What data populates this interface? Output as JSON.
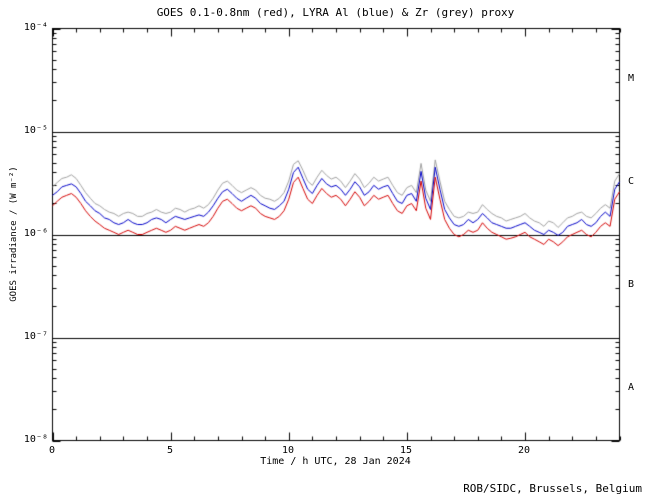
{
  "chart_data": {
    "type": "line",
    "title": "GOES 0.1-0.8nm (red), LYRA Al (blue) & Zr (grey) proxy",
    "xlabel": "Time / h UTC, 28 Jan 2024",
    "ylabel": "GOES irradiance / (W m⁻²)",
    "x_range": [
      0,
      24
    ],
    "y_scale": "log",
    "y_range": [
      1e-08,
      0.0001
    ],
    "xticks": [
      0,
      5,
      10,
      15,
      20
    ],
    "xtick_labels": [
      "0",
      "5",
      "10",
      "15",
      "20"
    ],
    "ytick_values": [
      1e-08,
      1e-07,
      1e-06,
      1e-05,
      0.0001
    ],
    "ytick_labels": [
      "10⁻⁸",
      "10⁻⁷",
      "10⁻⁶",
      "10⁻⁵",
      "10⁻⁴"
    ],
    "class_lines": [
      1e-07,
      1e-06,
      1e-05
    ],
    "class_labels": [
      "M",
      "C",
      "B",
      "A"
    ],
    "grid": false,
    "legend": "in title",
    "x_step_h": 0.2,
    "values_unit": "1e-6 W m^-2",
    "series": [
      {
        "name": "GOES 0.1-0.8nm",
        "color": "#d40000",
        "values": [
          1.9,
          2.1,
          2.3,
          2.4,
          2.5,
          2.3,
          2.0,
          1.7,
          1.5,
          1.35,
          1.25,
          1.15,
          1.1,
          1.05,
          1.0,
          1.05,
          1.1,
          1.05,
          1.0,
          1.0,
          1.05,
          1.1,
          1.15,
          1.1,
          1.05,
          1.1,
          1.2,
          1.15,
          1.1,
          1.15,
          1.2,
          1.25,
          1.2,
          1.3,
          1.5,
          1.8,
          2.1,
          2.2,
          2.0,
          1.8,
          1.7,
          1.8,
          1.9,
          1.8,
          1.6,
          1.5,
          1.45,
          1.4,
          1.5,
          1.7,
          2.2,
          3.2,
          3.6,
          2.8,
          2.2,
          2.0,
          2.4,
          2.8,
          2.5,
          2.3,
          2.4,
          2.2,
          1.9,
          2.2,
          2.6,
          2.3,
          1.9,
          2.1,
          2.4,
          2.2,
          2.3,
          2.4,
          2.0,
          1.7,
          1.6,
          1.9,
          2.0,
          1.7,
          3.3,
          1.8,
          1.4,
          3.6,
          2.2,
          1.4,
          1.15,
          1.0,
          0.95,
          1.0,
          1.1,
          1.05,
          1.1,
          1.3,
          1.15,
          1.05,
          1.0,
          0.95,
          0.9,
          0.92,
          0.95,
          1.0,
          1.05,
          0.95,
          0.9,
          0.85,
          0.8,
          0.9,
          0.85,
          0.78,
          0.85,
          0.95,
          1.0,
          1.05,
          1.1,
          1.0,
          0.95,
          1.05,
          1.2,
          1.3,
          1.2,
          2.2,
          2.6
        ]
      },
      {
        "name": "LYRA Al proxy",
        "color": "#0000c8",
        "values": [
          2.4,
          2.6,
          2.9,
          3.0,
          3.1,
          2.9,
          2.5,
          2.1,
          1.9,
          1.7,
          1.6,
          1.45,
          1.4,
          1.3,
          1.25,
          1.3,
          1.4,
          1.3,
          1.25,
          1.25,
          1.3,
          1.4,
          1.45,
          1.4,
          1.3,
          1.4,
          1.5,
          1.45,
          1.4,
          1.45,
          1.5,
          1.55,
          1.5,
          1.65,
          1.9,
          2.25,
          2.6,
          2.75,
          2.5,
          2.25,
          2.1,
          2.25,
          2.4,
          2.25,
          2.0,
          1.9,
          1.8,
          1.75,
          1.9,
          2.1,
          2.75,
          4.0,
          4.5,
          3.5,
          2.75,
          2.5,
          3.0,
          3.5,
          3.1,
          2.9,
          3.0,
          2.75,
          2.4,
          2.75,
          3.25,
          2.9,
          2.4,
          2.6,
          3.0,
          2.75,
          2.9,
          3.0,
          2.5,
          2.1,
          2.0,
          2.4,
          2.5,
          2.1,
          4.1,
          2.25,
          1.75,
          4.5,
          2.75,
          1.75,
          1.45,
          1.25,
          1.2,
          1.25,
          1.4,
          1.3,
          1.4,
          1.6,
          1.45,
          1.3,
          1.25,
          1.2,
          1.15,
          1.15,
          1.2,
          1.25,
          1.3,
          1.2,
          1.1,
          1.05,
          1.0,
          1.1,
          1.05,
          0.98,
          1.05,
          1.2,
          1.25,
          1.3,
          1.4,
          1.25,
          1.2,
          1.3,
          1.5,
          1.65,
          1.5,
          2.75,
          3.25
        ]
      },
      {
        "name": "LYRA Zr proxy",
        "color": "#a0a0a0",
        "values": [
          2.9,
          3.2,
          3.5,
          3.6,
          3.8,
          3.5,
          3.0,
          2.55,
          2.25,
          2.0,
          1.9,
          1.75,
          1.65,
          1.6,
          1.5,
          1.6,
          1.65,
          1.6,
          1.5,
          1.5,
          1.6,
          1.65,
          1.75,
          1.65,
          1.6,
          1.65,
          1.8,
          1.75,
          1.65,
          1.75,
          1.8,
          1.9,
          1.8,
          1.95,
          2.25,
          2.7,
          3.15,
          3.3,
          3.0,
          2.7,
          2.55,
          2.7,
          2.85,
          2.7,
          2.4,
          2.25,
          2.2,
          2.1,
          2.25,
          2.55,
          3.3,
          4.8,
          5.2,
          4.2,
          3.3,
          3.0,
          3.6,
          4.2,
          3.75,
          3.45,
          3.6,
          3.3,
          2.85,
          3.3,
          3.9,
          3.45,
          2.85,
          3.15,
          3.6,
          3.3,
          3.45,
          3.6,
          3.0,
          2.55,
          2.4,
          2.85,
          3.0,
          2.55,
          4.9,
          2.7,
          2.1,
          5.3,
          3.3,
          2.1,
          1.75,
          1.5,
          1.45,
          1.5,
          1.65,
          1.6,
          1.65,
          1.95,
          1.75,
          1.6,
          1.5,
          1.45,
          1.35,
          1.4,
          1.45,
          1.5,
          1.6,
          1.45,
          1.35,
          1.3,
          1.2,
          1.35,
          1.3,
          1.17,
          1.3,
          1.45,
          1.5,
          1.6,
          1.65,
          1.5,
          1.45,
          1.6,
          1.8,
          1.95,
          1.8,
          3.3,
          3.9
        ]
      }
    ]
  },
  "footer": {
    "credit": "ROB/SIDC, Brussels, Belgium"
  }
}
